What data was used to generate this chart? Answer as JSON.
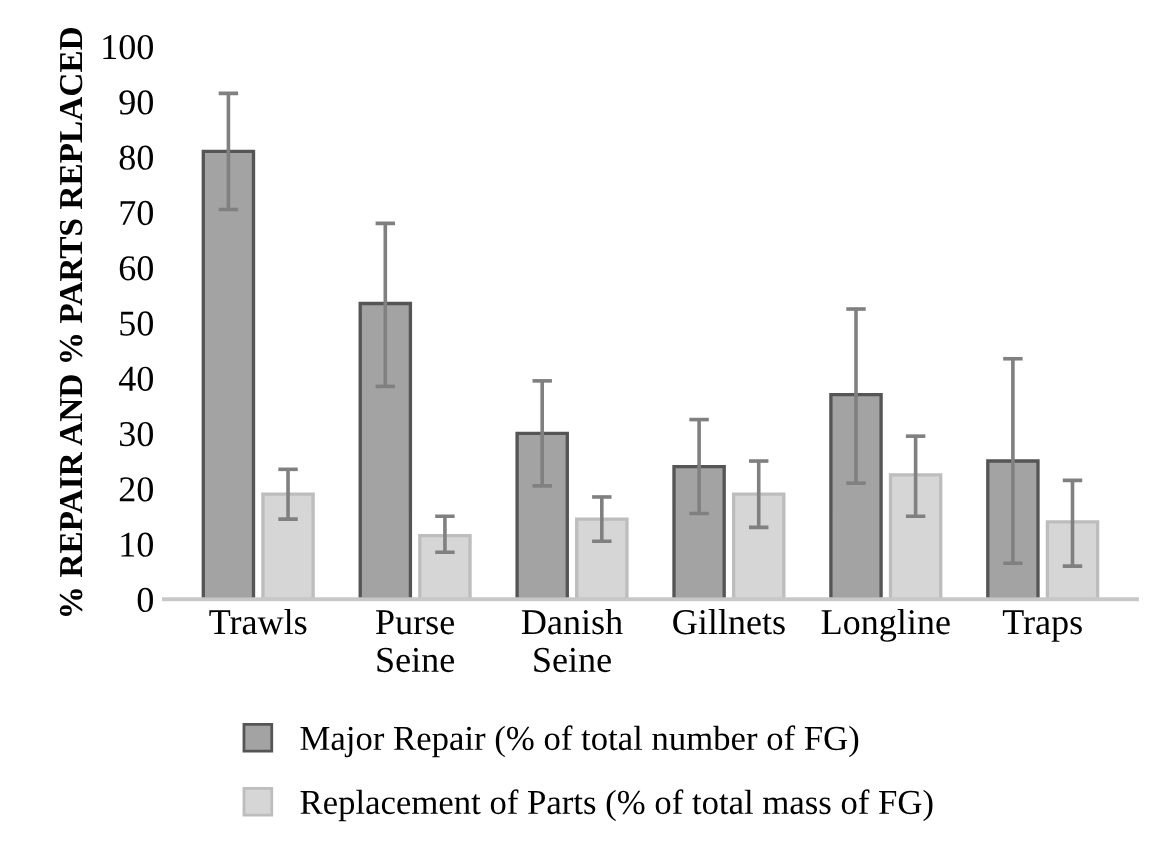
{
  "chart_data": {
    "type": "bar",
    "ylabel": "% REPAIR AND % PARTS REPLACED",
    "categories": [
      "Trawls",
      "Purse\nSeine",
      "Danish\nSeine",
      "Gillnets",
      "Longline",
      "Traps"
    ],
    "series": [
      {
        "name": "Major Repair (% of total number of FG)",
        "color": "#a3a3a3",
        "values": [
          81,
          53.5,
          30,
          24,
          37,
          25
        ],
        "errors": [
          [
            70.5,
            91.5
          ],
          [
            38.5,
            68
          ],
          [
            20.5,
            39.5
          ],
          [
            15.5,
            32.5
          ],
          [
            21,
            52.5
          ],
          [
            6.5,
            43.5
          ]
        ]
      },
      {
        "name": "Replacement of Parts (% of total mass of FG)",
        "color": "#d6d6d6",
        "values": [
          19,
          11.5,
          14.5,
          19,
          22.5,
          14
        ],
        "errors": [
          [
            14.5,
            23.5
          ],
          [
            8.5,
            15
          ],
          [
            10.5,
            18.5
          ],
          [
            13,
            25
          ],
          [
            15,
            29.5
          ],
          [
            6,
            21.5
          ]
        ]
      }
    ],
    "ylim": [
      0,
      100
    ],
    "yticks": [
      0,
      10,
      20,
      30,
      40,
      50,
      60,
      70,
      80,
      90,
      100
    ],
    "grid": false,
    "legend": "bottom"
  }
}
